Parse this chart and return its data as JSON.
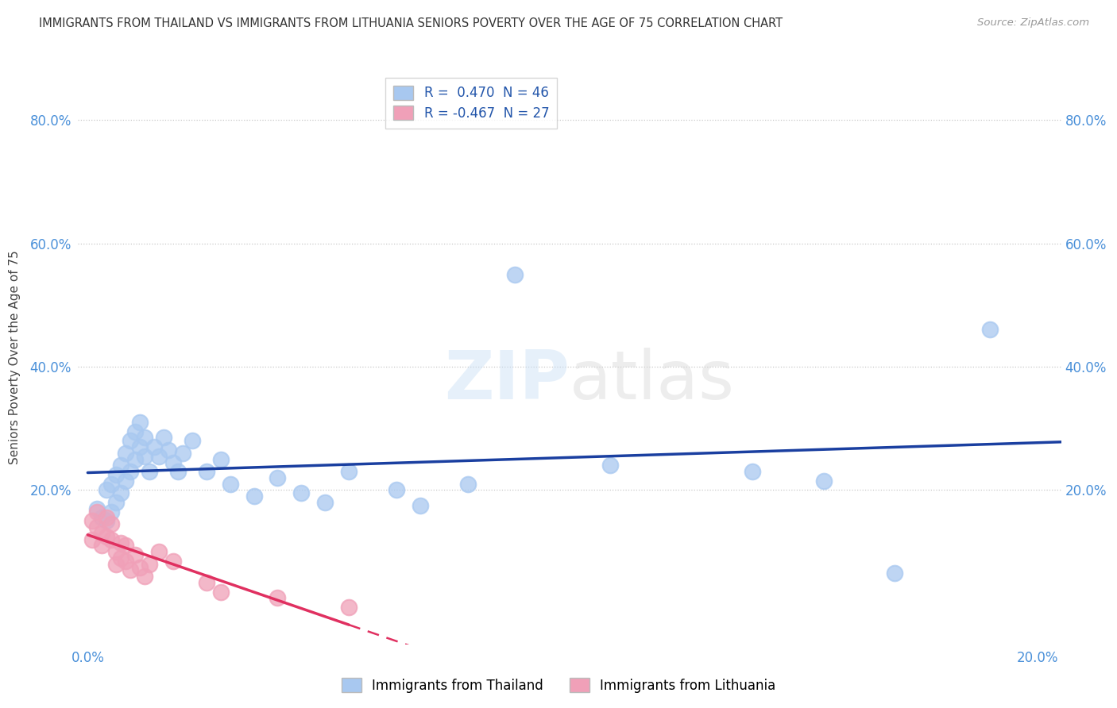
{
  "title": "IMMIGRANTS FROM THAILAND VS IMMIGRANTS FROM LITHUANIA SENIORS POVERTY OVER THE AGE OF 75 CORRELATION CHART",
  "source": "Source: ZipAtlas.com",
  "ylabel": "Seniors Poverty Over the Age of 75",
  "watermark": "ZIPatlas",
  "legend_thailand": "Immigrants from Thailand",
  "legend_lithuania": "Immigrants from Lithuania",
  "thailand_R": "0.470",
  "thailand_N": "46",
  "lithuania_R": "-0.467",
  "lithuania_N": "27",
  "xlim": [
    -0.002,
    0.205
  ],
  "ylim": [
    -0.05,
    0.88
  ],
  "thailand_color": "#a8c8f0",
  "thailand_line_color": "#1a3fa0",
  "lithuania_color": "#f0a0b8",
  "lithuania_line_color": "#e03060",
  "background_color": "#ffffff",
  "grid_color": "#c8c8c8",
  "title_color": "#333333",
  "axis_label_color": "#444444",
  "tick_label_color": "#4a90d9",
  "thailand_x": [
    0.002,
    0.003,
    0.004,
    0.004,
    0.005,
    0.005,
    0.006,
    0.006,
    0.007,
    0.007,
    0.008,
    0.008,
    0.009,
    0.009,
    0.01,
    0.01,
    0.011,
    0.011,
    0.012,
    0.012,
    0.013,
    0.014,
    0.015,
    0.016,
    0.017,
    0.018,
    0.019,
    0.02,
    0.022,
    0.025,
    0.028,
    0.03,
    0.035,
    0.04,
    0.045,
    0.05,
    0.055,
    0.065,
    0.07,
    0.08,
    0.09,
    0.11,
    0.14,
    0.155,
    0.17,
    0.19
  ],
  "thailand_y": [
    0.17,
    0.155,
    0.15,
    0.2,
    0.165,
    0.21,
    0.18,
    0.225,
    0.195,
    0.24,
    0.215,
    0.26,
    0.23,
    0.28,
    0.25,
    0.295,
    0.27,
    0.31,
    0.285,
    0.255,
    0.23,
    0.27,
    0.255,
    0.285,
    0.265,
    0.245,
    0.23,
    0.26,
    0.28,
    0.23,
    0.25,
    0.21,
    0.19,
    0.22,
    0.195,
    0.18,
    0.23,
    0.2,
    0.175,
    0.21,
    0.55,
    0.24,
    0.23,
    0.215,
    0.065,
    0.46
  ],
  "lithuania_x": [
    0.001,
    0.001,
    0.002,
    0.002,
    0.003,
    0.003,
    0.004,
    0.004,
    0.005,
    0.005,
    0.006,
    0.006,
    0.007,
    0.007,
    0.008,
    0.008,
    0.009,
    0.01,
    0.011,
    0.012,
    0.013,
    0.015,
    0.018,
    0.025,
    0.028,
    0.04,
    0.055
  ],
  "lithuania_y": [
    0.15,
    0.12,
    0.14,
    0.165,
    0.13,
    0.11,
    0.155,
    0.125,
    0.12,
    0.145,
    0.1,
    0.08,
    0.115,
    0.09,
    0.085,
    0.11,
    0.07,
    0.095,
    0.075,
    0.06,
    0.08,
    0.1,
    0.085,
    0.05,
    0.035,
    0.025,
    0.01
  ]
}
